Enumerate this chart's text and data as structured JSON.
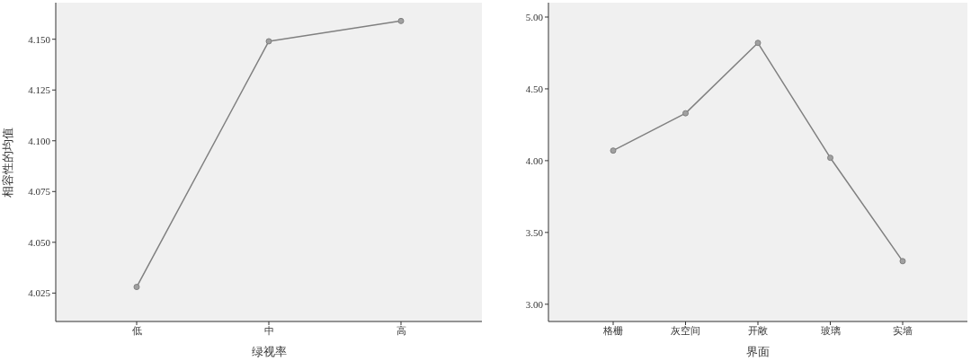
{
  "chart_data": [
    {
      "type": "line",
      "categories": [
        "低",
        "中",
        "高"
      ],
      "values": [
        4.028,
        4.149,
        4.159
      ],
      "color": "#808080",
      "xlabel": "绿视率",
      "ylabel": "相容性的均值",
      "ylim": [
        4.011,
        4.168
      ],
      "yticks": [
        {
          "value": 4.025,
          "label": "4.025"
        },
        {
          "value": 4.05,
          "label": "4.050"
        },
        {
          "value": 4.075,
          "label": "4.075"
        },
        {
          "value": 4.1,
          "label": "4.100"
        },
        {
          "value": 4.125,
          "label": "4.125"
        },
        {
          "value": 4.15,
          "label": "4.150"
        }
      ],
      "marker": "circle",
      "grid": false,
      "legend": false
    },
    {
      "type": "line",
      "categories": [
        "格栅",
        "灰空间",
        "开敞",
        "玻璃",
        "实墙"
      ],
      "values": [
        4.07,
        4.33,
        4.82,
        4.02,
        3.3
      ],
      "color": "#808080",
      "xlabel": "界面",
      "ylim": [
        2.88,
        5.1
      ],
      "yticks": [
        {
          "value": 3,
          "label": "3.00"
        },
        {
          "value": 3.5,
          "label": "3.50"
        },
        {
          "value": 4,
          "label": "4.00"
        },
        {
          "value": 4.5,
          "label": "4.50"
        },
        {
          "value": 5,
          "label": "5.00"
        }
      ],
      "marker": "circle",
      "grid": false,
      "legend": false
    }
  ]
}
